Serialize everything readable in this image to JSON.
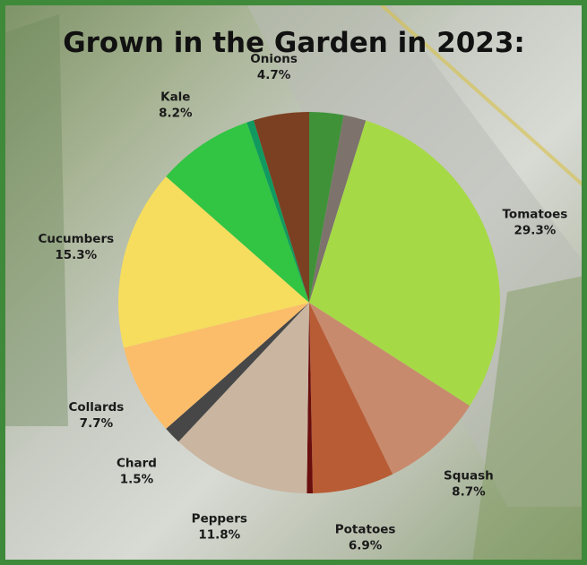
{
  "chart_data": {
    "type": "pie",
    "title": "Grown in the Garden in 2023:",
    "slices": [
      {
        "label": "",
        "value": 2.9,
        "pct_text": "",
        "color": "#3f9238"
      },
      {
        "label": "",
        "value": 1.9,
        "pct_text": "",
        "color": "#7d726c"
      },
      {
        "label": "Tomatoes",
        "value": 29.3,
        "pct_text": "29.3%",
        "color": "#a6d946"
      },
      {
        "label": "Squash",
        "value": 8.7,
        "pct_text": "8.7%",
        "color": "#c88a6d"
      },
      {
        "label": "Potatoes",
        "value": 6.9,
        "pct_text": "6.9%",
        "color": "#b85c35"
      },
      {
        "label": "",
        "value": 0.5,
        "pct_text": "",
        "color": "#6a0e0e"
      },
      {
        "label": "Peppers",
        "value": 11.8,
        "pct_text": "11.8%",
        "color": "#c9b5a0"
      },
      {
        "label": "Chard",
        "value": 1.5,
        "pct_text": "1.5%",
        "color": "#474747"
      },
      {
        "label": "Collards",
        "value": 7.7,
        "pct_text": "7.7%",
        "color": "#fbbd69"
      },
      {
        "label": "Cucumbers",
        "value": 15.3,
        "pct_text": "15.3%",
        "color": "#f6dd5e"
      },
      {
        "label": "Kale",
        "value": 8.2,
        "pct_text": "8.2%",
        "color": "#32c443"
      },
      {
        "label": "",
        "value": 0.6,
        "pct_text": "",
        "color": "#109a5f"
      },
      {
        "label": "Onions",
        "value": 4.7,
        "pct_text": "4.7%",
        "color": "#7b3f21"
      }
    ]
  }
}
